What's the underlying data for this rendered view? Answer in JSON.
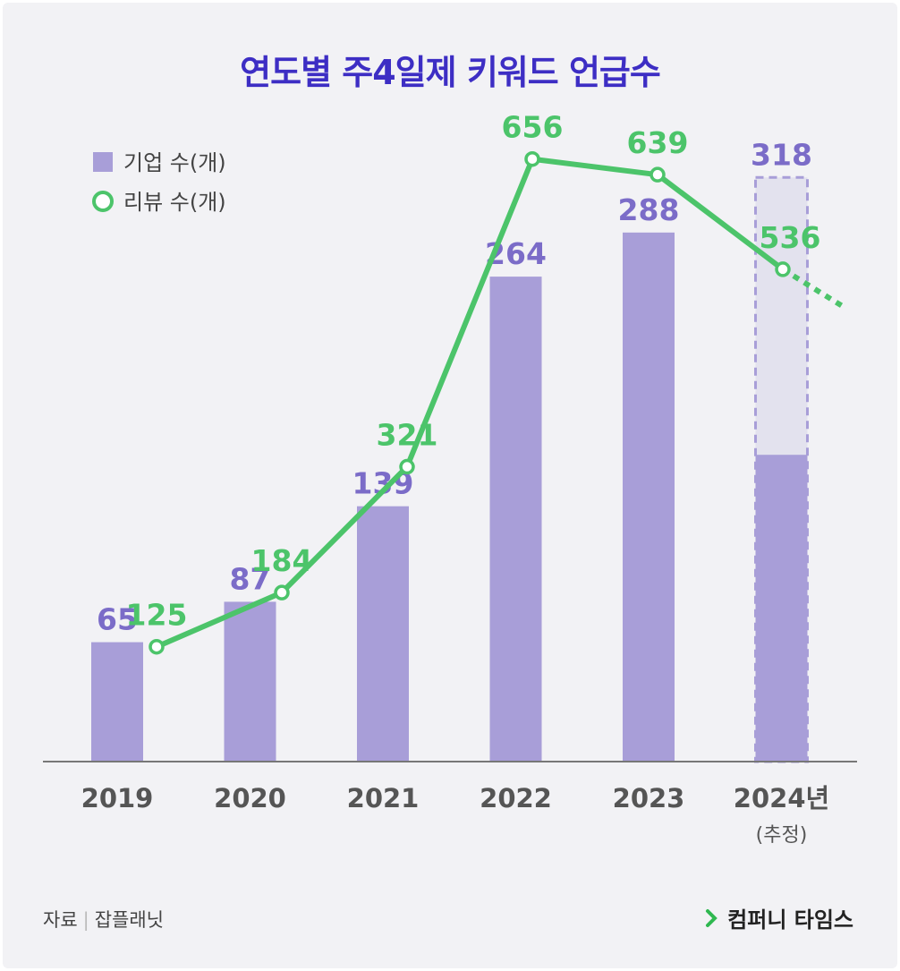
{
  "title": "연도별 주4일제 키워드 언급수",
  "source": {
    "label": "자료",
    "value": "잡플래닛"
  },
  "brand": "컴퍼니 타임스",
  "colors": {
    "bar": "#a89ed8",
    "bar_estimate": "#e3e2ee",
    "line": "#4cc46a",
    "title": "#3d2ec4"
  },
  "chart_data": {
    "type": "bar+line",
    "categories": [
      "2019",
      "2020",
      "2021",
      "2022",
      "2023",
      "2024년"
    ],
    "category_sub": [
      "",
      "",
      "",
      "",
      "",
      "(추정)"
    ],
    "series": [
      {
        "name": "기업 수(개)",
        "type": "bar",
        "values": [
          65,
          87,
          139,
          264,
          288,
          318
        ],
        "actual_2024": 167
      },
      {
        "name": "리뷰 수(개)",
        "type": "line",
        "values": [
          125,
          184,
          321,
          656,
          639,
          536
        ]
      }
    ],
    "bar_ylim": [
      0,
      380
    ],
    "line_ylim": [
      0,
      760
    ],
    "legend": "top-left",
    "estimate_index": 5
  }
}
